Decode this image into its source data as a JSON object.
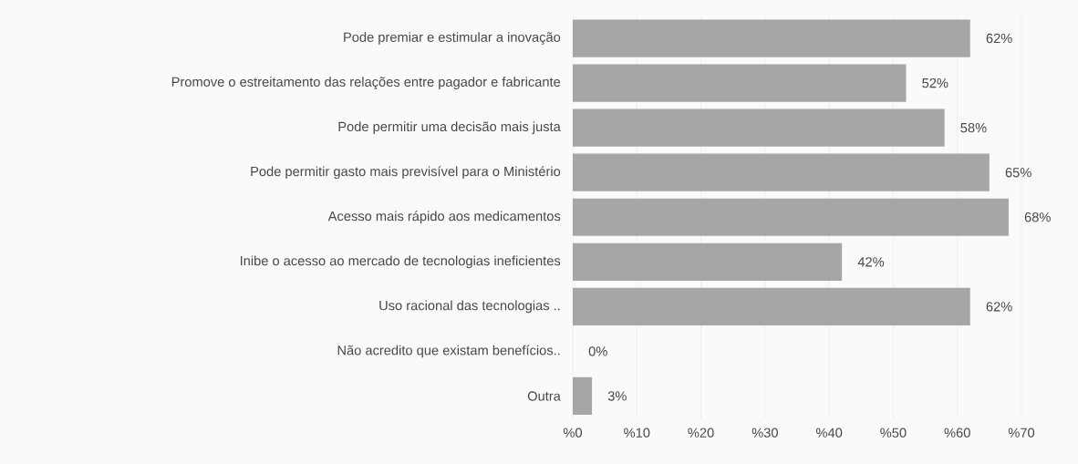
{
  "chart_data": {
    "type": "bar",
    "orientation": "horizontal",
    "categories": [
      "Pode premiar e estimular a inovação",
      "Promove o estreitamento das relações entre pagador e fabricante",
      "Pode permitir uma decisão mais justa",
      "Pode permitir gasto mais previsível para o Ministério",
      "Acesso mais rápido aos medicamentos",
      "Inibe o acesso ao mercado de tecnologias ineficientes",
      "Uso racional das tecnologias ..",
      "Não acredito que existam benefícios..",
      "Outra"
    ],
    "values": [
      62,
      52,
      58,
      65,
      68,
      42,
      62,
      0,
      3
    ],
    "value_labels": [
      "62%",
      "52%",
      "58%",
      "65%",
      "68%",
      "42%",
      "62%",
      "0%",
      "3%"
    ],
    "color": "#a6a6a6",
    "xlim": [
      0,
      70
    ],
    "xticks": [
      {
        "value": 0,
        "label": "%0"
      },
      {
        "value": 10,
        "label": "%10"
      },
      {
        "value": 20,
        "label": "%20"
      },
      {
        "value": 30,
        "label": "%30"
      },
      {
        "value": 40,
        "label": "%40"
      },
      {
        "value": 50,
        "label": "%50"
      },
      {
        "value": 60,
        "label": "%60"
      },
      {
        "value": 70,
        "label": "%70"
      }
    ],
    "grid": "x"
  }
}
